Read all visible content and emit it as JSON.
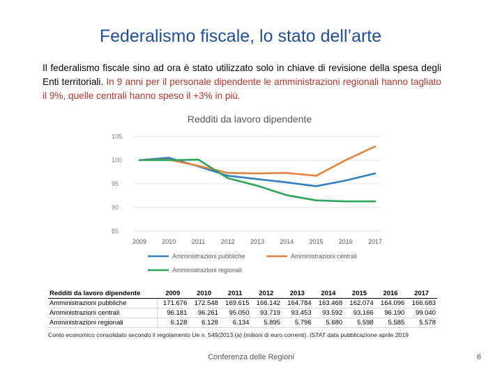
{
  "slide": {
    "title": "Federalismo fiscale, lo stato dell’arte",
    "para_black": "Il federalismo fiscale sino ad ora è stato utilizzato solo in chiave di revisione della spesa degli Enti territoriali.",
    "para_red": "In 9 anni per il personale dipendente le amministrazioni regionali hanno tagliato il 9%, quelle centrali hanno speso il +3% in più.",
    "source": "Conto economico consolidato secondo il regolamento Ue n. 549/2013 (a) (milioni di euro correnti). ISTAT data pubblicazione aprile 2019",
    "footer": "Conferenza delle Regioni",
    "page_number": "6"
  },
  "chart_data": {
    "type": "line",
    "title": "Redditi da lavoro dipendente",
    "x": [
      "2009",
      "2010",
      "2011",
      "2012",
      "2013",
      "2014",
      "2015",
      "2016",
      "2017"
    ],
    "y_ticks": [
      "85",
      "90",
      "95",
      "100",
      "105"
    ],
    "ylim": [
      85,
      105
    ],
    "series": [
      {
        "name": "Amministrazioni pubbliche",
        "color": "#2f7fc1",
        "values": [
          100,
          100.5,
          98.7,
          96.7,
          96.0,
          95.3,
          94.5,
          95.7,
          97.2
        ]
      },
      {
        "name": "Amministrazioni centrali",
        "color": "#e5813e",
        "values": [
          100,
          100.1,
          98.8,
          97.3,
          97.2,
          97.3,
          96.7,
          100.0,
          102.9
        ]
      },
      {
        "name": "Amministrazioni regionali",
        "color": "#2aa55a",
        "values": [
          100,
          100.0,
          100.1,
          96.2,
          94.6,
          92.6,
          91.5,
          91.3,
          91.3
        ]
      }
    ],
    "legend_position": "bottom"
  },
  "table": {
    "header": "Redditi da lavoro dipendente",
    "years": [
      "2009",
      "2010",
      "2011",
      "2012",
      "2013",
      "2014",
      "2015",
      "2016",
      "2017"
    ],
    "rows": [
      {
        "label": "Amministrazioni pubbliche",
        "values": [
          "171.676",
          "172.548",
          "169.615",
          "166.142",
          "164.784",
          "163.468",
          "162.074",
          "164.096",
          "166.683"
        ]
      },
      {
        "label": "Amministrazioni centrali",
        "values": [
          "96.181",
          "96.261",
          "95.050",
          "93.719",
          "93.453",
          "93.592",
          "93.166",
          "96.190",
          "99.040"
        ]
      },
      {
        "label": "Amministrazioni regionali",
        "values": [
          "6.128",
          "6.128",
          "6.134",
          "5.895",
          "5.796",
          "5.680",
          "5.598",
          "5.585",
          "5.578"
        ]
      }
    ]
  }
}
